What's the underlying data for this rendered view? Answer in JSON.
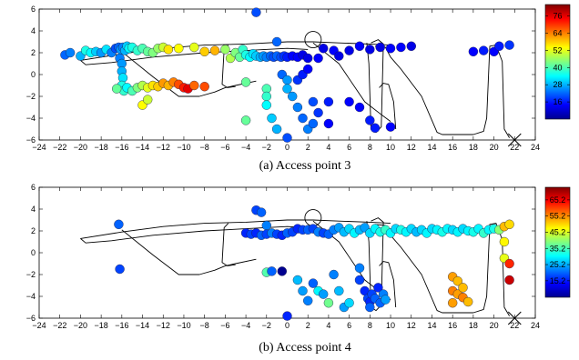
{
  "charts": [
    {
      "caption": "(a) Access point 3",
      "colorbar": {
        "labels": [
          "76",
          "64",
          "52",
          "40",
          "28",
          "16"
        ],
        "range": [
          4,
          84
        ]
      }
    },
    {
      "caption": "(b) Access point 4",
      "colorbar": {
        "labels": [
          "65.2",
          "55.2",
          "45.2",
          "35.2",
          "25.2",
          "15.2"
        ],
        "range": [
          5,
          73
        ]
      }
    }
  ],
  "chart_data": [
    {
      "type": "scatter",
      "title": "(a) Access point 3",
      "xlim": [
        -24,
        24
      ],
      "ylim": [
        -6,
        6
      ],
      "x_ticks": [
        "−24",
        "−22",
        "−20",
        "−18",
        "−16",
        "−14",
        "−12",
        "−10",
        "−8",
        "−6",
        "−4",
        "−2",
        "0",
        "2",
        "4",
        "6",
        "8",
        "10",
        "12",
        "14",
        "16",
        "18",
        "20",
        "22",
        "24"
      ],
      "y_ticks": [
        "−6",
        "−4",
        "−2",
        "0",
        "2",
        "4",
        "6"
      ],
      "grid": false,
      "colorbar_ticks": [
        76,
        64,
        52,
        40,
        28,
        16
      ],
      "points": [
        [
          -21.5,
          1.8,
          22
        ],
        [
          -21,
          2,
          24
        ],
        [
          -20,
          1.7,
          28
        ],
        [
          -19.5,
          2.2,
          36
        ],
        [
          -19,
          2,
          34
        ],
        [
          -18.5,
          2.1,
          30
        ],
        [
          -18,
          2,
          26
        ],
        [
          -17.5,
          2.3,
          32
        ],
        [
          -17,
          2,
          24
        ],
        [
          -16.6,
          2.4,
          20
        ],
        [
          -16.3,
          2.5,
          22
        ],
        [
          -16.1,
          2.3,
          26
        ],
        [
          -15.9,
          2.5,
          24
        ],
        [
          -15.7,
          2.2,
          28
        ],
        [
          -15.5,
          2.6,
          30
        ],
        [
          -15.3,
          2.4,
          34
        ],
        [
          -15,
          2.5,
          36
        ],
        [
          -14.5,
          2.2,
          38
        ],
        [
          -14,
          2.4,
          40
        ],
        [
          -13.5,
          2.1,
          42
        ],
        [
          -13,
          2,
          44
        ],
        [
          -12.5,
          2.4,
          46
        ],
        [
          -12,
          2.5,
          50
        ],
        [
          -11.5,
          2.3,
          56
        ],
        [
          -10.5,
          2.4,
          54
        ],
        [
          -9,
          2.5,
          52
        ],
        [
          -8,
          2.1,
          58
        ],
        [
          -7,
          2.2,
          60
        ],
        [
          -16.2,
          1.5,
          24
        ],
        [
          -16,
          1,
          26
        ],
        [
          -16,
          0.3,
          28
        ],
        [
          -15.9,
          -0.3,
          32
        ],
        [
          -16,
          -1,
          36
        ],
        [
          -15.8,
          -1.5,
          38
        ],
        [
          -15.5,
          -1.2,
          34
        ],
        [
          -15,
          -1.5,
          40
        ],
        [
          -14.5,
          -1.2,
          44
        ],
        [
          -14,
          -1,
          48
        ],
        [
          -13.5,
          -1.2,
          52
        ],
        [
          -13,
          -1,
          56
        ],
        [
          -12.5,
          -1.1,
          58
        ],
        [
          -12,
          -0.8,
          62
        ],
        [
          -11.5,
          -1,
          60
        ],
        [
          -11,
          -0.7,
          64
        ],
        [
          -10.5,
          -0.9,
          68
        ],
        [
          -10,
          -1.2,
          72
        ],
        [
          -9.6,
          -1.3,
          76
        ],
        [
          -9,
          -1,
          66
        ],
        [
          -8,
          -1.1,
          68
        ],
        [
          -14,
          -2.8,
          54
        ],
        [
          -13.5,
          -2.3,
          50
        ],
        [
          -16.5,
          -1.3,
          42
        ],
        [
          -6,
          2.3,
          46
        ],
        [
          -5.5,
          1.5,
          48
        ],
        [
          -5,
          2,
          44
        ],
        [
          -4.6,
          1.6,
          42
        ],
        [
          -4.3,
          2.3,
          38
        ],
        [
          -4,
          1.8,
          36
        ],
        [
          -3.6,
          1.6,
          34
        ],
        [
          -3.3,
          1.9,
          32
        ],
        [
          -3,
          1.7,
          30
        ],
        [
          -2.6,
          1.6,
          28
        ],
        [
          -2.3,
          1.7,
          26
        ],
        [
          -2,
          1.6,
          24
        ],
        [
          -1.6,
          1.7,
          22
        ],
        [
          -1.3,
          1.6,
          20
        ],
        [
          -1,
          1.7,
          22
        ],
        [
          -0.6,
          1.6,
          20
        ],
        [
          -0.3,
          1.7,
          18
        ],
        [
          0,
          1.6,
          16
        ],
        [
          0.5,
          1.7,
          14
        ],
        [
          1,
          1.6,
          14
        ],
        [
          1.5,
          1.8,
          12
        ],
        [
          2,
          1.5,
          12
        ],
        [
          -3,
          5.7,
          20
        ],
        [
          -1,
          3,
          22
        ],
        [
          -4,
          -0.7,
          42
        ],
        [
          -4,
          -4.2,
          42
        ],
        [
          -2,
          -1.3,
          40
        ],
        [
          -2,
          -2,
          38
        ],
        [
          -2,
          -2.8,
          34
        ],
        [
          -1.5,
          -4,
          30
        ],
        [
          -1,
          -5,
          28
        ],
        [
          0,
          -5.8,
          20
        ],
        [
          -0.5,
          0,
          22
        ],
        [
          0,
          -0.5,
          26
        ],
        [
          0,
          -1.3,
          28
        ],
        [
          0.5,
          -2,
          26
        ],
        [
          1,
          -3,
          24
        ],
        [
          1.5,
          -4,
          22
        ],
        [
          2,
          -5,
          24
        ],
        [
          2.5,
          -4.5,
          22
        ],
        [
          3,
          -3.5,
          18
        ],
        [
          4,
          -2.5,
          16
        ],
        [
          4,
          -4.5,
          14
        ],
        [
          2.5,
          -2.5,
          20
        ],
        [
          1,
          -0.5,
          18
        ],
        [
          1.5,
          0,
          16
        ],
        [
          2,
          0.5,
          14
        ],
        [
          3,
          1.5,
          14
        ],
        [
          3.5,
          2.4,
          12
        ],
        [
          4.5,
          2.2,
          14
        ],
        [
          5,
          1.7,
          12
        ],
        [
          6,
          2.2,
          12
        ],
        [
          7,
          2.6,
          14
        ],
        [
          8,
          2.3,
          12
        ],
        [
          9,
          2.5,
          12
        ],
        [
          10,
          2.4,
          14
        ],
        [
          11,
          2.5,
          14
        ],
        [
          12,
          2.6,
          12
        ],
        [
          18,
          2.1,
          14
        ],
        [
          19,
          2.2,
          16
        ],
        [
          20,
          2.1,
          14
        ],
        [
          20.5,
          2.6,
          16
        ],
        [
          21.5,
          2.7,
          18
        ],
        [
          6,
          -2.5,
          14
        ],
        [
          7,
          -3,
          14
        ],
        [
          8,
          -4.2,
          16
        ],
        [
          10,
          -4.8,
          14
        ],
        [
          8.5,
          -4.9,
          16
        ]
      ]
    },
    {
      "type": "scatter",
      "title": "(b) Access point 4",
      "xlim": [
        -24,
        24
      ],
      "ylim": [
        -6,
        6
      ],
      "x_ticks": [
        "−24",
        "−22",
        "−20",
        "−18",
        "−16",
        "−14",
        "−12",
        "−10",
        "−8",
        "−6",
        "−4",
        "−2",
        "0",
        "2",
        "4",
        "6",
        "8",
        "10",
        "12",
        "14",
        "16",
        "18",
        "20",
        "22",
        "24"
      ],
      "y_ticks": [
        "−6",
        "−4",
        "−2",
        "0",
        "2",
        "4",
        "6"
      ],
      "grid": false,
      "colorbar_ticks": [
        65.2,
        55.2,
        45.2,
        35.2,
        25.2,
        15.2
      ],
      "points": [
        [
          -16.3,
          2.6,
          20
        ],
        [
          -16.2,
          -1.5,
          18
        ],
        [
          -3,
          3.9,
          18
        ],
        [
          -2.5,
          3.7,
          20
        ],
        [
          -2,
          2.5,
          22
        ],
        [
          -4,
          1.8,
          16
        ],
        [
          -3.5,
          1.7,
          18
        ],
        [
          -3,
          1.8,
          16
        ],
        [
          -2.5,
          1.6,
          20
        ],
        [
          -2,
          1.7,
          18
        ],
        [
          -1.5,
          1.8,
          22
        ],
        [
          -1,
          1.7,
          18
        ],
        [
          -0.5,
          1.6,
          16
        ],
        [
          0,
          1.8,
          20
        ],
        [
          0.5,
          1.9,
          18
        ],
        [
          1,
          2.2,
          16
        ],
        [
          1.5,
          2.1,
          18
        ],
        [
          2,
          2.1,
          20
        ],
        [
          2.5,
          2.2,
          18
        ],
        [
          3,
          1.9,
          22
        ],
        [
          3.5,
          1.8,
          18
        ],
        [
          4,
          1.7,
          20
        ],
        [
          4.5,
          2.1,
          22
        ],
        [
          5,
          2.3,
          24
        ],
        [
          5.5,
          1.9,
          26
        ],
        [
          6,
          2.2,
          28
        ],
        [
          6.5,
          1.8,
          30
        ],
        [
          7,
          2.1,
          26
        ],
        [
          7.5,
          2.3,
          24
        ],
        [
          8,
          1.8,
          28
        ],
        [
          8.5,
          2.2,
          30
        ],
        [
          9,
          1.9,
          32
        ],
        [
          9.5,
          2.1,
          34
        ],
        [
          10,
          1.8,
          30
        ],
        [
          10.5,
          2.2,
          28
        ],
        [
          11,
          2.1,
          32
        ],
        [
          11.5,
          1.9,
          30
        ],
        [
          12,
          2.2,
          28
        ],
        [
          12.5,
          1.9,
          26
        ],
        [
          13,
          2.1,
          28
        ],
        [
          13.5,
          1.8,
          30
        ],
        [
          14,
          2.2,
          28
        ],
        [
          14.5,
          2.1,
          30
        ],
        [
          15,
          1.9,
          32
        ],
        [
          15.5,
          2.2,
          30
        ],
        [
          16,
          2.1,
          28
        ],
        [
          16.5,
          1.9,
          30
        ],
        [
          17,
          2.2,
          28
        ],
        [
          17.5,
          2,
          30
        ],
        [
          18,
          1.9,
          32
        ],
        [
          18.5,
          2.2,
          30
        ],
        [
          19,
          1.8,
          34
        ],
        [
          19.5,
          2.1,
          30
        ],
        [
          20,
          2.2,
          32
        ],
        [
          20.5,
          2.1,
          40
        ],
        [
          21,
          2.4,
          52
        ],
        [
          21.5,
          2.6,
          50
        ],
        [
          21,
          1,
          48
        ],
        [
          21,
          -0.5,
          46
        ],
        [
          21.5,
          -1,
          62
        ],
        [
          21.5,
          -2.5,
          68
        ],
        [
          -2,
          -1.8,
          36
        ],
        [
          -1.5,
          -1.7,
          20
        ],
        [
          -0.5,
          -1.7,
          6
        ],
        [
          1,
          -2.5,
          26
        ],
        [
          1.5,
          -3.5,
          24
        ],
        [
          2,
          -4.4,
          22
        ],
        [
          2.5,
          -2.8,
          20
        ],
        [
          3,
          -3.5,
          30
        ],
        [
          3.5,
          -3.8,
          24
        ],
        [
          4,
          -4.6,
          38
        ],
        [
          4.5,
          -2,
          22
        ],
        [
          5,
          -3.5,
          26
        ],
        [
          5.5,
          -5,
          24
        ],
        [
          6,
          -4.6,
          28
        ],
        [
          7,
          -2.5,
          18
        ],
        [
          7,
          -1.4,
          22
        ],
        [
          7.5,
          -3.5,
          16
        ],
        [
          7.8,
          -4.2,
          18
        ],
        [
          8,
          -4.5,
          16
        ],
        [
          8,
          -5,
          20
        ],
        [
          8.2,
          -3.8,
          18
        ],
        [
          8.5,
          -4.2,
          20
        ],
        [
          8.8,
          -3.2,
          16
        ],
        [
          9,
          -4.6,
          20
        ],
        [
          9.3,
          -3.8,
          22
        ],
        [
          9.5,
          -4.3,
          24
        ],
        [
          0,
          -5.8,
          16
        ],
        [
          16,
          -2.2,
          54
        ],
        [
          16.5,
          -2.6,
          52
        ],
        [
          16,
          -3.5,
          56
        ],
        [
          16.5,
          -3.8,
          54
        ],
        [
          17,
          -3.2,
          52
        ],
        [
          17,
          -4.1,
          56
        ],
        [
          17.5,
          -4.5,
          52
        ],
        [
          16,
          -4.6,
          54
        ]
      ]
    }
  ]
}
